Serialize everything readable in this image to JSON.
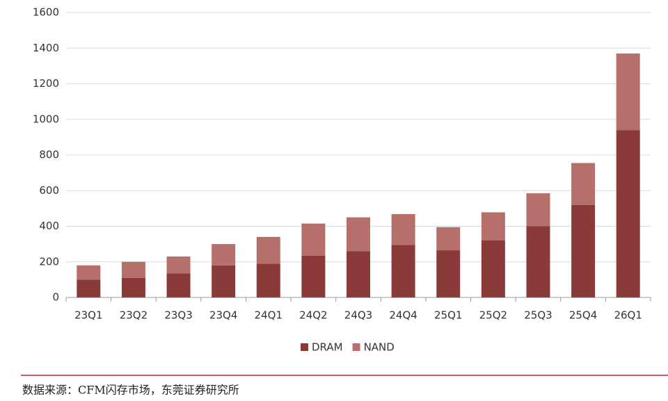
{
  "chart_data": {
    "type": "stacked_bar",
    "categories": [
      "23Q1",
      "23Q2",
      "23Q3",
      "23Q4",
      "24Q1",
      "24Q2",
      "24Q3",
      "24Q4",
      "25Q1",
      "25Q2",
      "25Q3",
      "25Q4",
      "26Q1"
    ],
    "series": [
      {
        "name": "DRAM",
        "color": "#8b3a3a",
        "values": [
          100,
          110,
          135,
          180,
          190,
          235,
          260,
          295,
          265,
          320,
          400,
          520,
          940
        ]
      },
      {
        "name": "NAND",
        "color": "#b5706c",
        "values": [
          80,
          90,
          95,
          120,
          150,
          180,
          190,
          173,
          130,
          158,
          185,
          235,
          430
        ]
      }
    ],
    "ylim": [
      0,
      1600
    ],
    "yticks": [
      0,
      200,
      400,
      600,
      800,
      1000,
      1200,
      1400,
      1600
    ],
    "grid": true,
    "legend": "bottom",
    "source": "数据来源：CFM闪存市场，东莞证券研究所"
  }
}
